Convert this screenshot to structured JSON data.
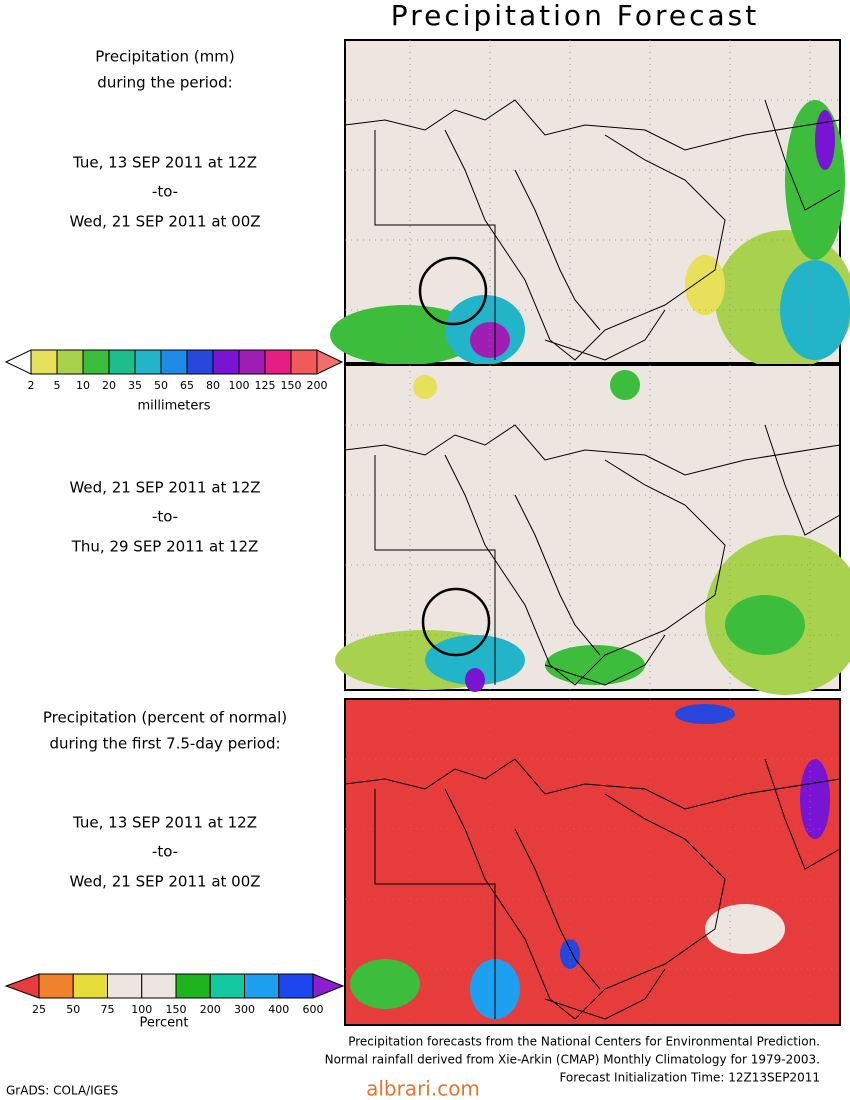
{
  "title": "Precipitation Forecast",
  "panels": [
    {
      "heading": [
        "Precipitation (mm)",
        "during the period:"
      ],
      "start": "Tue, 13 SEP 2011 at 12Z",
      "sep": "-to-",
      "end": "Wed, 21 SEP 2011 at 00Z"
    },
    {
      "start": "Wed, 21 SEP 2011 at 12Z",
      "sep": "-to-",
      "end": "Thu, 29 SEP 2011 at 12Z"
    },
    {
      "heading": [
        "Precipitation (percent of normal)",
        "during the first 7.5-day period:"
      ],
      "start": "Tue, 13 SEP 2011 at 12Z",
      "sep": "-to-",
      "end": "Wed, 21 SEP 2011 at 00Z"
    }
  ],
  "colorbars": [
    {
      "labels": [
        2,
        5,
        10,
        20,
        35,
        50,
        65,
        80,
        100,
        125,
        150,
        200
      ],
      "unit": "millimeters",
      "colors": [
        "#ffffff",
        "#e8e05a",
        "#a8d24e",
        "#3cbe3c",
        "#1ebe8c",
        "#22b4c8",
        "#1e8ce6",
        "#2846dc",
        "#7814d2",
        "#a01eb4",
        "#e61e82",
        "#f05a5a",
        "#f06e6e"
      ]
    },
    {
      "labels": [
        25,
        50,
        75,
        100,
        150,
        200,
        300,
        400,
        600
      ],
      "unit": "Percent",
      "colors": [
        "#e63c3c",
        "#f0822d",
        "#e6dc3c",
        "#ede5df",
        "#ede5df",
        "#1eb41e",
        "#14c8a0",
        "#1ea0f0",
        "#1e46f0",
        "#8c1ed2"
      ]
    }
  ],
  "footer": [
    "Precipitation forecasts from the National Centers for Environmental Prediction.",
    "Normal rainfall derived from Xie-Arkin (CMAP) Monthly Climatology for 1979-2003.",
    "Forecast Initialization Time: 12Z13SEP2011"
  ],
  "credit": "GrADS: COLA/IGES",
  "watermark": "albrari.com"
}
